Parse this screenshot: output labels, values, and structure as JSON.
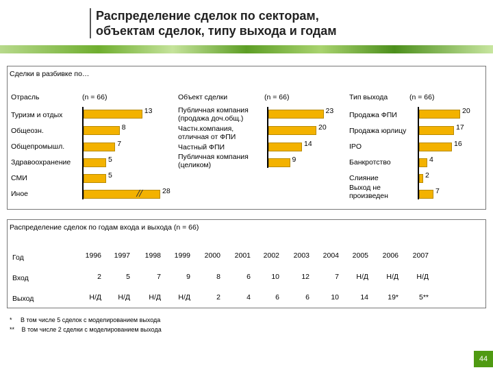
{
  "title_line1": "Распределение сделок по секторам,",
  "title_line2": "объектам сделок, типу выхода и годам",
  "panel1_title": "Сделки в разбивке по…",
  "panel2_title": "Распределение сделок по годам входа и выхода (n = 66)",
  "page_number": "44",
  "footnote1": "В том числе 5 сделок с моделированием выхода",
  "footnote2": "В том числе 2 сделки с моделированием выхода",
  "footnote1_mark": "*",
  "footnote2_mark": "**",
  "chart_data": [
    {
      "type": "bar",
      "orientation": "horizontal",
      "title": "Отрасль",
      "n_label": "(n = 66)",
      "categories": [
        "Туризм и отдых",
        "Общеозн.",
        "Общепромышл.",
        "Здравоохранение",
        "СМИ",
        "Иное"
      ],
      "values": [
        13,
        8,
        7,
        5,
        5,
        28
      ],
      "value_labels": [
        "13",
        "8",
        "7",
        "5",
        "5",
        "28"
      ],
      "axis_break_on": "Иное"
    },
    {
      "type": "bar",
      "orientation": "horizontal",
      "title": "Объект сделки",
      "n_label": "(n = 66)",
      "categories": [
        "Публичная компания (продажа доч.общ.)",
        "Частн.компания, отличная от ФПИ",
        "Частный ФПИ",
        "Публичная компания (целиком)"
      ],
      "values": [
        23,
        20,
        14,
        9
      ],
      "value_labels": [
        "23",
        "20",
        "14",
        "9"
      ]
    },
    {
      "type": "bar",
      "orientation": "horizontal",
      "title": "Тип выхода",
      "n_label": "(n = 66)",
      "categories": [
        "Продажа ФПИ",
        "Продажа юрлицу",
        "IPO",
        "Банкротство",
        "Слияние",
        "Выход не произведен"
      ],
      "values": [
        20,
        17,
        16,
        4,
        2,
        7
      ],
      "value_labels": [
        "20",
        "17",
        "16",
        "4",
        "2",
        "7"
      ]
    },
    {
      "type": "table",
      "title": "Распределение сделок по годам входа и выхода (n = 66)",
      "header_label": "Год",
      "columns": [
        "1996",
        "1997",
        "1998",
        "1999",
        "2000",
        "2001",
        "2002",
        "2003",
        "2004",
        "2005",
        "2006",
        "2007"
      ],
      "rows": [
        {
          "label": "Вход",
          "values": [
            "2",
            "5",
            "7",
            "9",
            "8",
            "6",
            "10",
            "12",
            "7",
            "Н/Д",
            "Н/Д",
            "Н/Д"
          ]
        },
        {
          "label": "Выход",
          "values": [
            "Н/Д",
            "Н/Д",
            "Н/Д",
            "Н/Д",
            "2",
            "4",
            "6",
            "6",
            "10",
            "14",
            "19*",
            "5**"
          ]
        }
      ]
    }
  ]
}
